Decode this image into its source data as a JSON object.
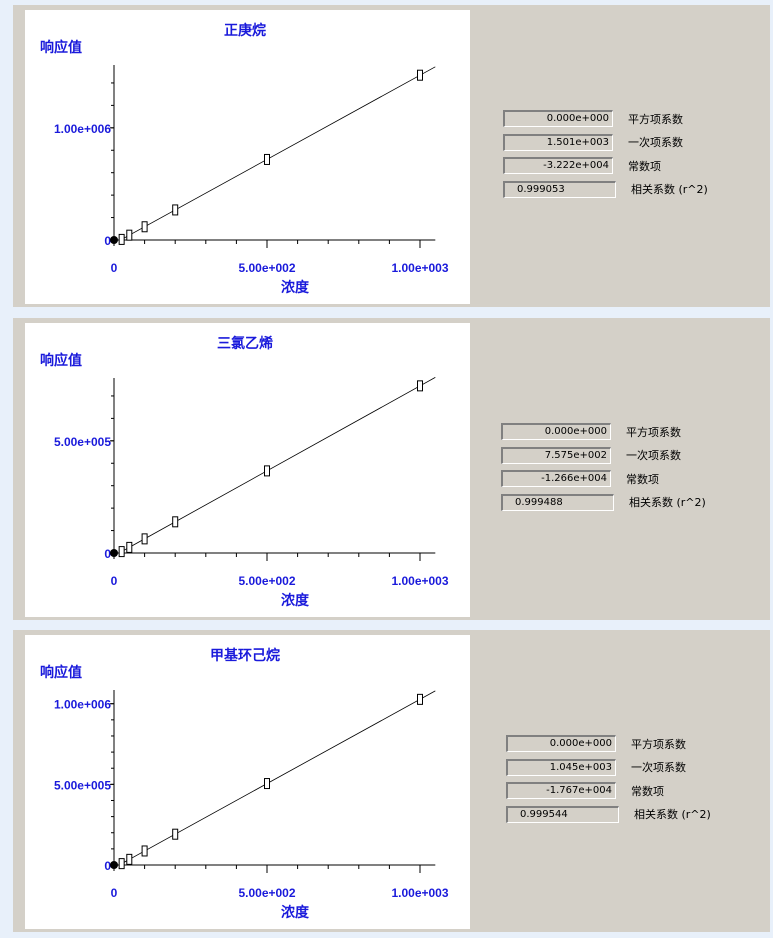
{
  "colors": {
    "label": "#1a1adb",
    "axis": "#000000",
    "panel": "#d4d0c8"
  },
  "coef_labels": [
    "平方项系数",
    "一次项系数",
    "常数项",
    "相关系数 (r^2)"
  ],
  "chart_data": [
    {
      "type": "scatter",
      "title": "正庚烷",
      "ylabel": "响应值",
      "xlabel": "浓度",
      "xlim": [
        0,
        1050
      ],
      "ylim": [
        0,
        1560000
      ],
      "xticks": [
        0,
        500,
        1000
      ],
      "xtick_labels": [
        "0",
        "5.00e+002",
        "1.00e+003"
      ],
      "yticks": [
        0,
        1000000
      ],
      "ytick_labels": [
        "0",
        "1.00e+006"
      ],
      "y_minor_step": 200000,
      "x_minor_step": 100,
      "points": [
        [
          0,
          0
        ],
        [
          25,
          5300
        ],
        [
          50,
          43000
        ],
        [
          100,
          118000
        ],
        [
          200,
          268000
        ],
        [
          500,
          718000
        ],
        [
          1000,
          1469000
        ]
      ],
      "fit": {
        "a": 0,
        "b": 1501,
        "c": -32220
      },
      "coefficients": [
        "0.000e+000",
        "1.501e+003",
        "-3.222e+004",
        "0.999053"
      ]
    },
    {
      "type": "scatter",
      "title": "三氯乙烯",
      "ylabel": "响应值",
      "xlabel": "浓度",
      "xlim": [
        0,
        1050
      ],
      "ylim": [
        0,
        780000
      ],
      "xticks": [
        0,
        500,
        1000
      ],
      "xtick_labels": [
        "0",
        "5.00e+002",
        "1.00e+003"
      ],
      "yticks": [
        0,
        500000
      ],
      "ytick_labels": [
        "0",
        "5.00e+005"
      ],
      "y_minor_step": 100000,
      "x_minor_step": 100,
      "points": [
        [
          0,
          0
        ],
        [
          25,
          6300
        ],
        [
          50,
          25000
        ],
        [
          100,
          63000
        ],
        [
          200,
          139000
        ],
        [
          500,
          366000
        ],
        [
          1000,
          745000
        ]
      ],
      "fit": {
        "a": 0,
        "b": 757.5,
        "c": -12660
      },
      "coefficients": [
        "0.000e+000",
        "7.575e+002",
        "-1.266e+004",
        "0.999488"
      ]
    },
    {
      "type": "scatter",
      "title": "甲基环己烷",
      "ylabel": "响应值",
      "xlabel": "浓度",
      "xlim": [
        0,
        1050
      ],
      "ylim": [
        0,
        1085000
      ],
      "xticks": [
        0,
        500,
        1000
      ],
      "xtick_labels": [
        "0",
        "5.00e+002",
        "1.00e+003"
      ],
      "yticks": [
        0,
        500000,
        1000000
      ],
      "ytick_labels": [
        "0",
        "5.00e+005",
        "1.00e+006"
      ],
      "y_minor_step": 100000,
      "x_minor_step": 100,
      "points": [
        [
          0,
          0
        ],
        [
          25,
          8500
        ],
        [
          50,
          35000
        ],
        [
          100,
          87000
        ],
        [
          200,
          191000
        ],
        [
          500,
          505000
        ],
        [
          1000,
          1027000
        ]
      ],
      "fit": {
        "a": 0,
        "b": 1045,
        "c": -17670
      },
      "coefficients": [
        "0.000e+000",
        "1.045e+003",
        "-1.767e+004",
        "0.999544"
      ]
    }
  ]
}
